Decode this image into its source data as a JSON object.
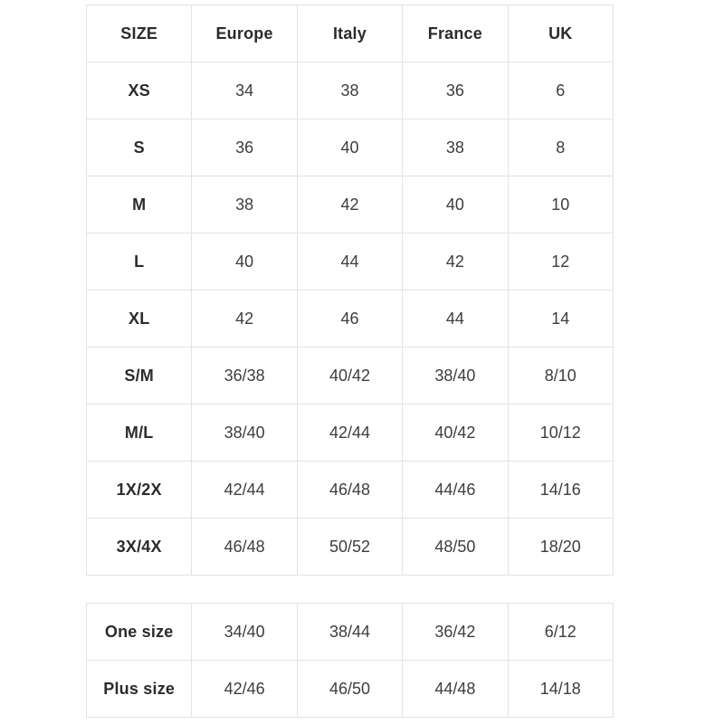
{
  "page": {
    "background": "#ffffff"
  },
  "colors": {
    "border": "#e2e2e2",
    "header_text": "#2b2b30",
    "cell_text": "#3d3d42"
  },
  "size_chart": {
    "columns": [
      "SIZE",
      "Europe",
      "Italy",
      "France",
      "UK"
    ],
    "rows": [
      {
        "label": "XS",
        "values": [
          "34",
          "38",
          "36",
          "6"
        ]
      },
      {
        "label": "S",
        "values": [
          "36",
          "40",
          "38",
          "8"
        ]
      },
      {
        "label": "M",
        "values": [
          "38",
          "42",
          "40",
          "10"
        ]
      },
      {
        "label": "L",
        "values": [
          "40",
          "44",
          "42",
          "12"
        ]
      },
      {
        "label": "XL",
        "values": [
          "42",
          "46",
          "44",
          "14"
        ]
      },
      {
        "label": "S/M",
        "values": [
          "36/38",
          "40/42",
          "38/40",
          "8/10"
        ]
      },
      {
        "label": "M/L",
        "values": [
          "38/40",
          "42/44",
          "40/42",
          "10/12"
        ]
      },
      {
        "label": "1X/2X",
        "values": [
          "42/44",
          "46/48",
          "44/46",
          "14/16"
        ]
      },
      {
        "label": "3X/4X",
        "values": [
          "46/48",
          "50/52",
          "48/50",
          "18/20"
        ]
      }
    ]
  },
  "special_sizes": {
    "rows": [
      {
        "label": "One size",
        "values": [
          "34/40",
          "38/44",
          "36/42",
          "6/12"
        ]
      },
      {
        "label": "Plus size",
        "values": [
          "42/46",
          "46/50",
          "44/48",
          "14/18"
        ]
      }
    ]
  },
  "chart_data": {
    "type": "table",
    "title": "",
    "tables": [
      {
        "name": "size-conversion-table",
        "columns": [
          "SIZE",
          "Europe",
          "Italy",
          "France",
          "UK"
        ],
        "rows": [
          [
            "XS",
            "34",
            "38",
            "36",
            "6"
          ],
          [
            "S",
            "36",
            "40",
            "38",
            "8"
          ],
          [
            "M",
            "38",
            "42",
            "40",
            "10"
          ],
          [
            "L",
            "40",
            "44",
            "42",
            "12"
          ],
          [
            "XL",
            "42",
            "46",
            "44",
            "14"
          ],
          [
            "S/M",
            "36/38",
            "40/42",
            "38/40",
            "8/10"
          ],
          [
            "M/L",
            "38/40",
            "42/44",
            "40/42",
            "10/12"
          ],
          [
            "1X/2X",
            "42/44",
            "46/48",
            "44/46",
            "14/16"
          ],
          [
            "3X/4X",
            "46/48",
            "50/52",
            "48/50",
            "18/20"
          ]
        ]
      },
      {
        "name": "special-size-conversion-table",
        "columns": [],
        "rows": [
          [
            "One size",
            "34/40",
            "38/44",
            "36/42",
            "6/12"
          ],
          [
            "Plus size",
            "42/46",
            "46/50",
            "44/48",
            "14/18"
          ]
        ]
      }
    ],
    "layout": {
      "grid": "full-borders",
      "header_row": true,
      "bold_first_column": true
    }
  }
}
